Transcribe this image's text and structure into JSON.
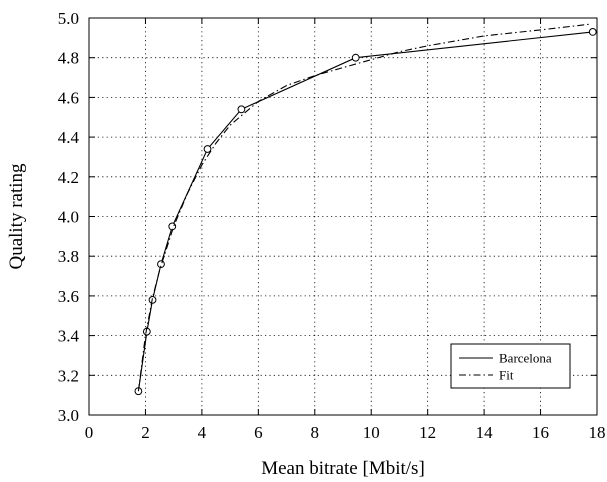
{
  "chart_data": {
    "type": "line",
    "xlabel": "Mean bitrate [Mbit/s]",
    "ylabel": "Quality rating",
    "xlim": [
      0,
      18
    ],
    "ylim": [
      3.0,
      5.0
    ],
    "x_ticks": [
      "0",
      "2",
      "4",
      "6",
      "8",
      "10",
      "12",
      "14",
      "16",
      "18"
    ],
    "y_ticks": [
      "3.0",
      "3.2",
      "3.4",
      "3.6",
      "3.8",
      "4.0",
      "4.2",
      "4.4",
      "4.6",
      "4.8",
      "5.0"
    ],
    "grid": true,
    "legend_position": "bottom-right",
    "series": [
      {
        "name": "Barcelona",
        "style": "solid",
        "markers": "open-circle",
        "color": "#000000",
        "x": [
          1.75,
          2.05,
          2.25,
          2.55,
          2.95,
          4.2,
          5.4,
          9.45,
          17.85
        ],
        "y": [
          3.12,
          3.42,
          3.58,
          3.76,
          3.95,
          4.34,
          4.54,
          4.8,
          4.93
        ]
      },
      {
        "name": "Fit",
        "style": "dash-dot",
        "color": "#000000",
        "x": [
          1.75,
          2.0,
          2.25,
          2.5,
          3.0,
          3.5,
          4.0,
          4.5,
          5.0,
          6.0,
          7.0,
          8.0,
          9.0,
          10.0,
          11.0,
          12.0,
          14.0,
          16.0,
          17.8
        ],
        "y": [
          3.12,
          3.4,
          3.59,
          3.73,
          3.95,
          4.12,
          4.26,
          4.37,
          4.46,
          4.58,
          4.66,
          4.71,
          4.75,
          4.79,
          4.83,
          4.86,
          4.91,
          4.94,
          4.97
        ]
      }
    ]
  }
}
